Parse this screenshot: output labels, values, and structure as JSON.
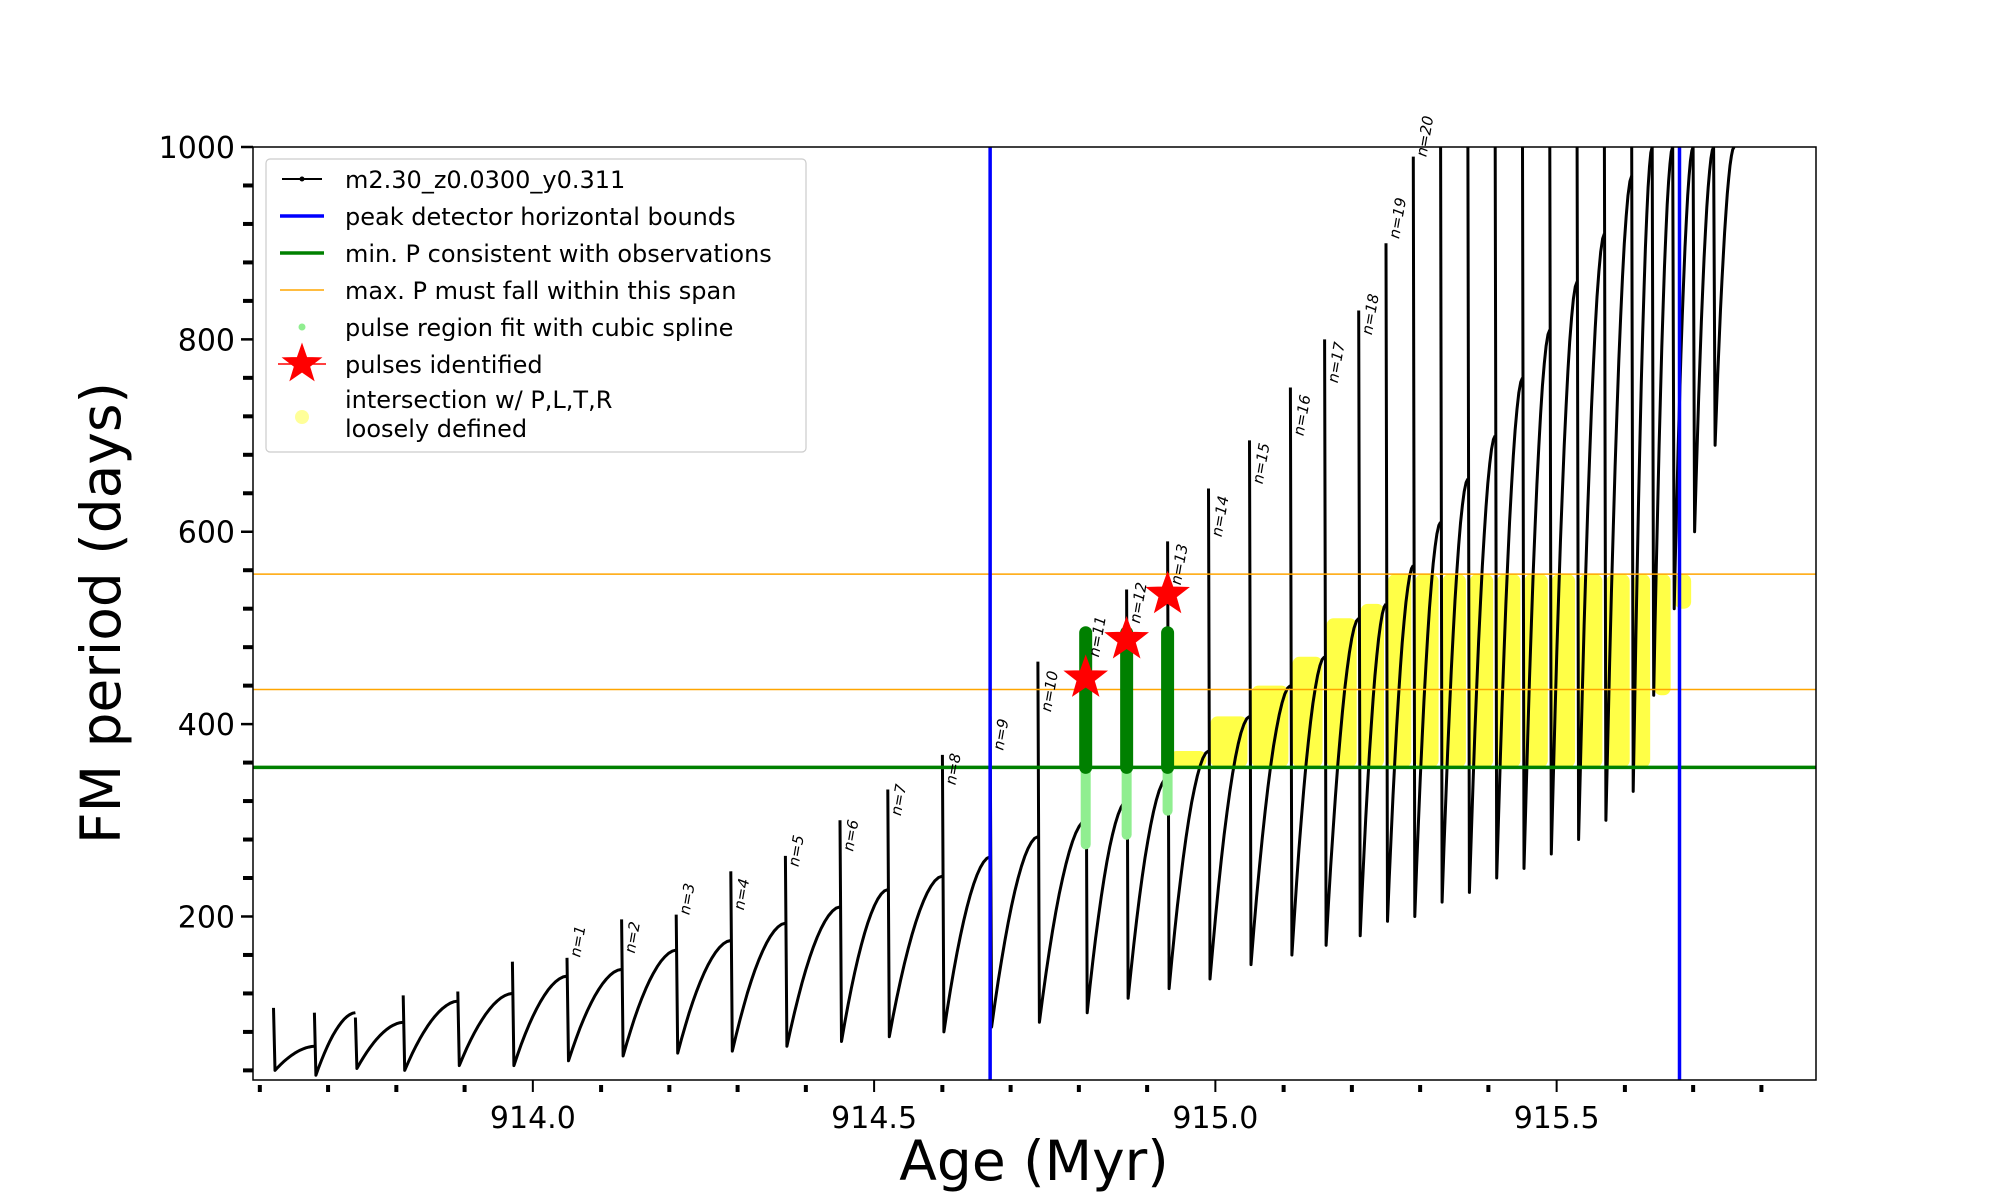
{
  "chart_data": {
    "type": "line",
    "title": "",
    "xlabel": "Age (Myr)",
    "ylabel": "FM period (days)",
    "xlim": [
      913.59,
      915.88
    ],
    "ylim": [
      30,
      1000
    ],
    "x_ticks": [
      914.0,
      914.5,
      915.0,
      915.5
    ],
    "x_tick_labels": [
      "914.0",
      "914.5",
      "915.0",
      "915.5"
    ],
    "y_ticks": [
      200,
      400,
      600,
      800,
      1000
    ],
    "y_tick_labels": [
      "200",
      "400",
      "600",
      "800",
      "1000"
    ],
    "grid": false,
    "legend_position": "top-left",
    "legend": [
      {
        "label": "m2.30_z0.0300_y0.311",
        "kind": "line-marker",
        "color": "#000000"
      },
      {
        "label": "peak detector horizontal bounds",
        "kind": "line",
        "color": "#0000ff"
      },
      {
        "label": "min. P consistent with observations",
        "kind": "line",
        "color": "#008000"
      },
      {
        "label": "max. P must fall within this span",
        "kind": "thin-line",
        "color": "#ffa500"
      },
      {
        "label": "pulse region fit with cubic spline",
        "kind": "dot",
        "color": "#90ee90"
      },
      {
        "label": "pulses identified",
        "kind": "star",
        "color": "#ff0000"
      },
      {
        "label": "intersection w/ P,L,T,R\nloosely defined",
        "kind": "dot-large",
        "color": "#ffff99"
      }
    ],
    "vertical_lines": [
      {
        "x": 914.67,
        "color": "#0000ff",
        "role": "peak detector horizontal bounds"
      },
      {
        "x": 915.68,
        "color": "#0000ff",
        "role": "peak detector horizontal bounds"
      }
    ],
    "horizontal_lines": [
      {
        "y": 355,
        "color": "#008000",
        "role": "min. P consistent with observations"
      },
      {
        "y": 436,
        "color": "#ffa500",
        "role": "max. P lower"
      },
      {
        "y": 556,
        "color": "#ffa500",
        "role": "max. P upper"
      }
    ],
    "series": [
      {
        "name": "m2.30_z0.0300_y0.311",
        "color": "#000000",
        "cycles": [
          {
            "x_start": 913.62,
            "x_end": 913.68,
            "p_min": 40,
            "p_end": 65,
            "spike": 105
          },
          {
            "x_start": 913.68,
            "x_end": 913.74,
            "p_min": 35,
            "p_end": 100,
            "spike": 100
          },
          {
            "x_start": 913.74,
            "x_end": 913.81,
            "p_min": 42,
            "p_end": 90,
            "spike": 95
          },
          {
            "x_start": 913.81,
            "x_end": 913.89,
            "p_min": 40,
            "p_end": 112,
            "spike": 118
          },
          {
            "x_start": 913.89,
            "x_end": 913.97,
            "p_min": 45,
            "p_end": 120,
            "spike": 122
          },
          {
            "x_start": 913.97,
            "x_end": 914.05,
            "p_min": 45,
            "p_end": 138,
            "spike": 153
          },
          {
            "x_start": 914.05,
            "x_end": 914.13,
            "p_min": 50,
            "p_end": 145,
            "spike": 157
          },
          {
            "x_start": 914.13,
            "x_end": 914.21,
            "p_min": 55,
            "p_end": 165,
            "spike": 197
          },
          {
            "x_start": 914.21,
            "x_end": 914.29,
            "p_min": 58,
            "p_end": 175,
            "spike": 202
          },
          {
            "x_start": 914.29,
            "x_end": 914.37,
            "p_min": 60,
            "p_end": 193,
            "spike": 247
          },
          {
            "x_start": 914.37,
            "x_end": 914.45,
            "p_min": 65,
            "p_end": 210,
            "spike": 263
          },
          {
            "x_start": 914.45,
            "x_end": 914.52,
            "p_min": 70,
            "p_end": 228,
            "spike": 300
          },
          {
            "x_start": 914.52,
            "x_end": 914.6,
            "p_min": 75,
            "p_end": 242,
            "spike": 332
          },
          {
            "x_start": 914.6,
            "x_end": 914.67,
            "p_min": 80,
            "p_end": 262,
            "spike": 368
          },
          {
            "x_start": 914.67,
            "x_end": 914.74,
            "p_min": 85,
            "p_end": 283,
            "spike": 408
          },
          {
            "x_start": 914.74,
            "x_end": 914.81,
            "p_min": 90,
            "p_end": 300,
            "spike": 465
          },
          {
            "x_start": 914.81,
            "x_end": 914.87,
            "p_min": 100,
            "p_end": 320,
            "spike": 500
          },
          {
            "x_start": 914.87,
            "x_end": 914.93,
            "p_min": 115,
            "p_end": 345,
            "spike": 540
          },
          {
            "x_start": 914.93,
            "x_end": 914.99,
            "p_min": 125,
            "p_end": 372,
            "spike": 590
          },
          {
            "x_start": 914.99,
            "x_end": 915.05,
            "p_min": 135,
            "p_end": 408,
            "spike": 645
          },
          {
            "x_start": 915.05,
            "x_end": 915.11,
            "p_min": 150,
            "p_end": 440,
            "spike": 695
          },
          {
            "x_start": 915.11,
            "x_end": 915.16,
            "p_min": 160,
            "p_end": 470,
            "spike": 750
          },
          {
            "x_start": 915.16,
            "x_end": 915.21,
            "p_min": 170,
            "p_end": 510,
            "spike": 800
          },
          {
            "x_start": 915.21,
            "x_end": 915.25,
            "p_min": 180,
            "p_end": 525,
            "spike": 830
          },
          {
            "x_start": 915.25,
            "x_end": 915.29,
            "p_min": 195,
            "p_end": 565,
            "spike": 900
          },
          {
            "x_start": 915.29,
            "x_end": 915.33,
            "p_min": 200,
            "p_end": 610,
            "spike": 990
          },
          {
            "x_start": 915.33,
            "x_end": 915.37,
            "p_min": 215,
            "p_end": 655,
            "spike": 1000
          },
          {
            "x_start": 915.37,
            "x_end": 915.41,
            "p_min": 225,
            "p_end": 700,
            "spike": 1000
          },
          {
            "x_start": 915.41,
            "x_end": 915.45,
            "p_min": 240,
            "p_end": 760,
            "spike": 1000
          },
          {
            "x_start": 915.45,
            "x_end": 915.49,
            "p_min": 250,
            "p_end": 810,
            "spike": 1000
          },
          {
            "x_start": 915.49,
            "x_end": 915.53,
            "p_min": 265,
            "p_end": 860,
            "spike": 1000
          },
          {
            "x_start": 915.53,
            "x_end": 915.57,
            "p_min": 280,
            "p_end": 910,
            "spike": 1000
          },
          {
            "x_start": 915.57,
            "x_end": 915.61,
            "p_min": 300,
            "p_end": 970,
            "spike": 1000
          },
          {
            "x_start": 915.61,
            "x_end": 915.64,
            "p_min": 330,
            "p_end": 1000,
            "spike": 1000
          },
          {
            "x_start": 915.64,
            "x_end": 915.67,
            "p_min": 430,
            "p_end": 1000,
            "spike": 1000
          },
          {
            "x_start": 915.67,
            "x_end": 915.7,
            "p_min": 520,
            "p_end": 1000,
            "spike": 1000
          },
          {
            "x_start": 915.7,
            "x_end": 915.73,
            "p_min": 600,
            "p_end": 1000,
            "spike": 1000
          },
          {
            "x_start": 915.73,
            "x_end": 915.76,
            "p_min": 690,
            "p_end": 1000,
            "spike": 1000
          }
        ]
      },
      {
        "name": "pulses identified",
        "color": "#ff0000",
        "points": [
          {
            "x": 914.81,
            "y": 448
          },
          {
            "x": 914.87,
            "y": 488
          },
          {
            "x": 914.93,
            "y": 535
          }
        ]
      },
      {
        "name": "min. P consistent with observations",
        "color": "#008000",
        "segments": [
          {
            "x": 914.81,
            "y_low": 355,
            "y_high": 495
          },
          {
            "x": 914.87,
            "y_low": 355,
            "y_high": 495
          },
          {
            "x": 914.93,
            "y_low": 355,
            "y_high": 495
          }
        ]
      },
      {
        "name": "pulse region fit with cubic spline",
        "color": "#90ee90",
        "segments": [
          {
            "x": 914.81,
            "y_low": 275,
            "y_high": 355
          },
          {
            "x": 914.87,
            "y_low": 285,
            "y_high": 355
          },
          {
            "x": 914.93,
            "y_low": 310,
            "y_high": 355
          }
        ]
      }
    ],
    "pulse_labels": [
      {
        "label": "n=1",
        "x": 914.05,
        "y": 153
      },
      {
        "label": "n=2",
        "x": 914.13,
        "y": 157
      },
      {
        "label": "n=3",
        "x": 914.21,
        "y": 197
      },
      {
        "label": "n=4",
        "x": 914.29,
        "y": 202
      },
      {
        "label": "n=5",
        "x": 914.37,
        "y": 247
      },
      {
        "label": "n=6",
        "x": 914.45,
        "y": 263
      },
      {
        "label": "n=7",
        "x": 914.52,
        "y": 300
      },
      {
        "label": "n=8",
        "x": 914.6,
        "y": 332
      },
      {
        "label": "n=9",
        "x": 914.67,
        "y": 368
      },
      {
        "label": "n=10",
        "x": 914.74,
        "y": 408
      },
      {
        "label": "n=11",
        "x": 914.81,
        "y": 465
      },
      {
        "label": "n=12",
        "x": 914.87,
        "y": 500
      },
      {
        "label": "n=13",
        "x": 914.93,
        "y": 540
      },
      {
        "label": "n=14",
        "x": 914.99,
        "y": 590
      },
      {
        "label": "n=15",
        "x": 915.05,
        "y": 645
      },
      {
        "label": "n=16",
        "x": 915.11,
        "y": 695
      },
      {
        "label": "n=17",
        "x": 915.16,
        "y": 750
      },
      {
        "label": "n=18",
        "x": 915.21,
        "y": 800
      },
      {
        "label": "n=19",
        "x": 915.25,
        "y": 900
      },
      {
        "label": "n=20",
        "x": 915.29,
        "y": 990
      }
    ]
  }
}
